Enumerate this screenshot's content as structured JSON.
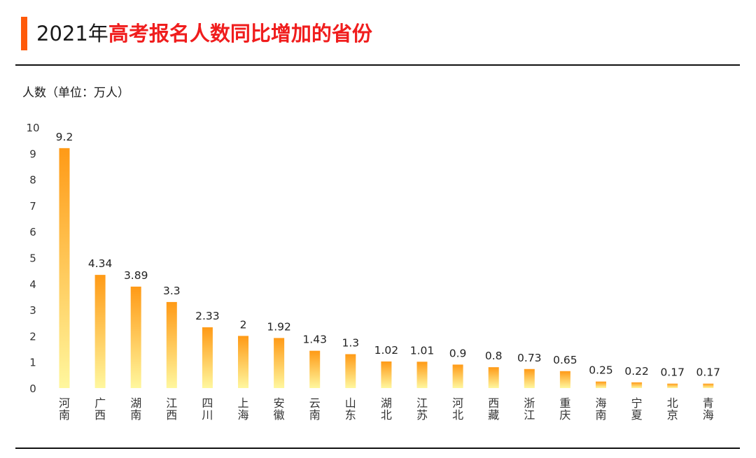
{
  "header": {
    "title_prefix": "2021年",
    "title_highlight": "高考报名人数同比增加的省份"
  },
  "colors": {
    "accent": "#ff5a0a",
    "title_highlight": "#f01d1d",
    "bar_top": "#ff9a16",
    "bar_bottom": "#fff79e"
  },
  "chart_data": {
    "type": "bar",
    "title": "2021年高考报名人数同比增加的省份",
    "ylabel": "人数（单位：万人）",
    "ylim": [
      0,
      10
    ],
    "yticks": [
      0,
      1,
      2,
      3,
      4,
      5,
      6,
      7,
      8,
      9,
      10
    ],
    "grid": false,
    "categories": [
      "河南",
      "广西",
      "湖南",
      "江西",
      "四川",
      "上海",
      "安徽",
      "云南",
      "山东",
      "湖北",
      "江苏",
      "河北",
      "西藏",
      "浙江",
      "重庆",
      "海南",
      "宁夏",
      "北京",
      "青海"
    ],
    "values": [
      9.2,
      4.34,
      3.89,
      3.3,
      2.33,
      2,
      1.92,
      1.43,
      1.3,
      1.02,
      1.01,
      0.9,
      0.8,
      0.73,
      0.65,
      0.25,
      0.22,
      0.17,
      0.17
    ],
    "value_labels": [
      "9.2",
      "4.34",
      "3.89",
      "3.3",
      "2.33",
      "2",
      "1.92",
      "1.43",
      "1.3",
      "1.02",
      "1.01",
      "0.9",
      "0.8",
      "0.73",
      "0.65",
      "0.25",
      "0.22",
      "0.17",
      "0.17"
    ]
  }
}
